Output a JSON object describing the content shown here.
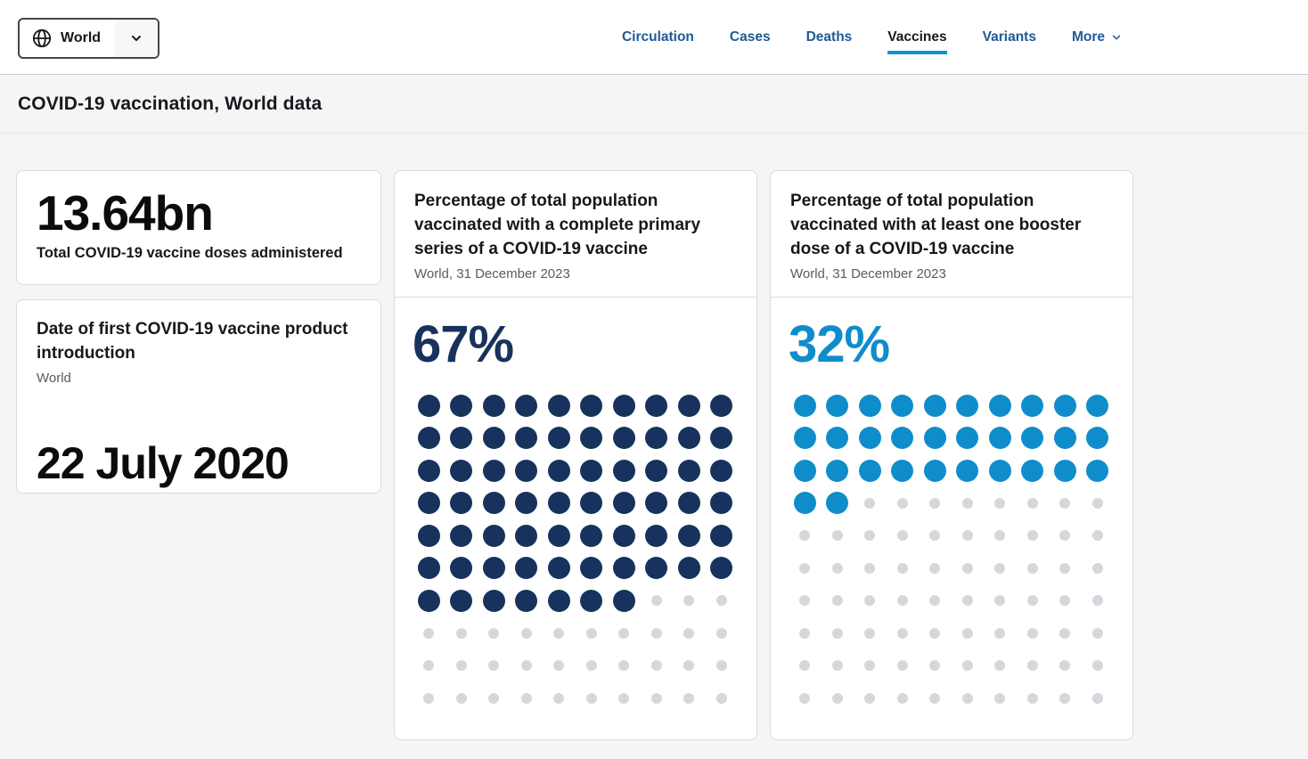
{
  "header": {
    "region_selector": {
      "label": "World"
    },
    "nav": [
      {
        "label": "Circulation",
        "active": false
      },
      {
        "label": "Cases",
        "active": false
      },
      {
        "label": "Deaths",
        "active": false
      },
      {
        "label": "Vaccines",
        "active": true
      },
      {
        "label": "Variants",
        "active": false
      },
      {
        "label": "More",
        "active": false,
        "has_dropdown": true
      }
    ]
  },
  "page": {
    "title": "COVID-19 vaccination, World data"
  },
  "cards": {
    "total_doses": {
      "value": "13.64bn",
      "label": "Total COVID-19 vaccine doses administered"
    },
    "first_introduction": {
      "title": "Date of first COVID-19 vaccine product introduction",
      "subtitle": "World",
      "value": "22 July 2020"
    },
    "primary_series": {
      "title": "Percentage of total population vaccinated with a complete primary series of a COVID-19 vaccine",
      "subtitle": "World, 31 December 2023",
      "value": "67%"
    },
    "booster": {
      "title": "Percentage of total population vaccinated with at least one booster dose of a COVID-19 vaccine",
      "subtitle": "World, 31 December 2023",
      "value": "32%"
    }
  },
  "chart_data": [
    {
      "type": "waffle",
      "title": "Percentage of total population vaccinated with a complete primary series of a COVID-19 vaccine",
      "subtitle": "World, 31 December 2023",
      "percent": 67,
      "filled_dots": 67,
      "total_dots": 100,
      "grid_rows": 10,
      "grid_cols": 10,
      "fill_order": "top-left, row by row",
      "filled_color": "#17325d",
      "empty_color": "#d6d7dd"
    },
    {
      "type": "waffle",
      "title": "Percentage of total population vaccinated with at least one booster dose of a COVID-19 vaccine",
      "subtitle": "World, 31 December 2023",
      "percent": 32,
      "filled_dots": 32,
      "total_dots": 100,
      "grid_rows": 10,
      "grid_cols": 10,
      "fill_order": "top-left, row by row",
      "filled_color": "#0f8dcb",
      "empty_color": "#d6d7dd"
    }
  ],
  "colors": {
    "nav_link": "#205a94",
    "active_tab_text": "#171b20",
    "active_underline": "#0f93d2",
    "navy": "#17325d",
    "blue": "#0f8dcb",
    "empty_dot": "#d6d7dd",
    "page_background": "#f5f5f6"
  }
}
